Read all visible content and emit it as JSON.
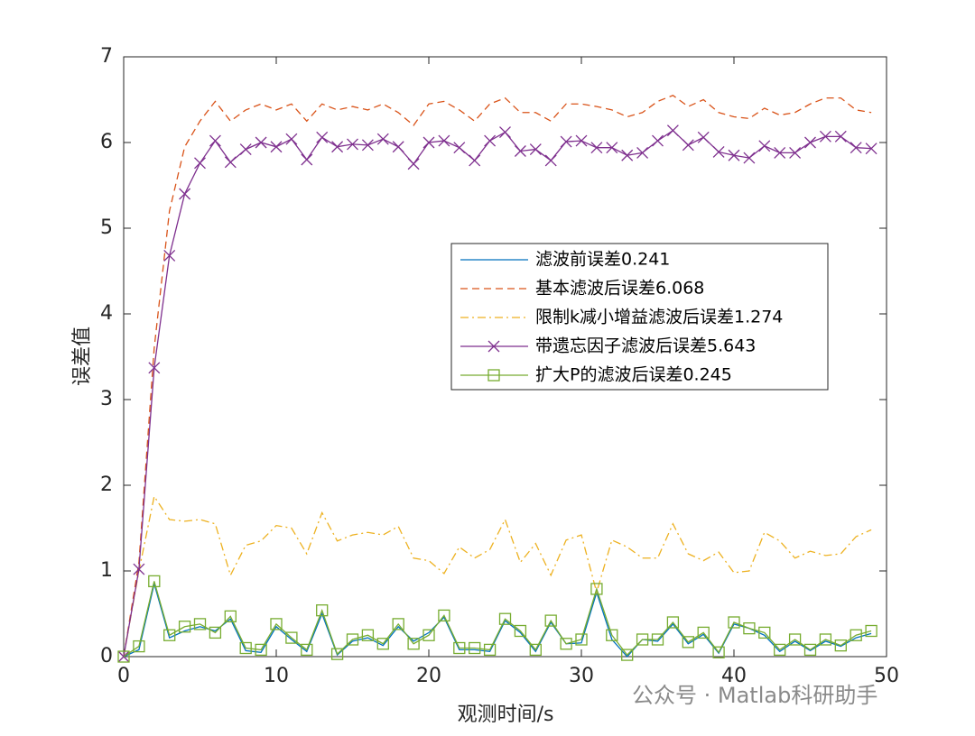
{
  "chart_data": {
    "type": "line",
    "xlabel": "观测时间/s",
    "ylabel": "误差值",
    "xlim": [
      0,
      50
    ],
    "xticks": [
      0,
      10,
      20,
      30,
      40,
      50
    ],
    "ylim": [
      0,
      7
    ],
    "yticks": [
      0,
      1,
      2,
      3,
      4,
      5,
      6,
      7
    ],
    "x": [
      0,
      1,
      2,
      3,
      4,
      5,
      6,
      7,
      8,
      9,
      10,
      11,
      12,
      13,
      14,
      15,
      16,
      17,
      18,
      19,
      20,
      21,
      22,
      23,
      24,
      25,
      26,
      27,
      28,
      29,
      30,
      31,
      32,
      33,
      34,
      35,
      36,
      37,
      38,
      39,
      40,
      41,
      42,
      43,
      44,
      45,
      46,
      47,
      48,
      49
    ],
    "series": [
      {
        "name": "滤波前误差0.241",
        "color": "#0072BD",
        "linestyle": "-",
        "marker": "none",
        "values": [
          0,
          0.08,
          0.85,
          0.22,
          0.3,
          0.35,
          0.3,
          0.44,
          0.07,
          0.05,
          0.35,
          0.2,
          0.06,
          0.5,
          0.02,
          0.18,
          0.22,
          0.13,
          0.35,
          0.18,
          0.28,
          0.46,
          0.08,
          0.08,
          0.06,
          0.42,
          0.28,
          0.06,
          0.4,
          0.15,
          0.16,
          0.75,
          0.2,
          0.0,
          0.2,
          0.18,
          0.38,
          0.15,
          0.26,
          0.04,
          0.38,
          0.33,
          0.25,
          0.06,
          0.18,
          0.07,
          0.18,
          0.12,
          0.22,
          0.27
        ]
      },
      {
        "name": "基本滤波后误差6.068",
        "color": "#D95319",
        "linestyle": "--",
        "marker": "none",
        "values": [
          0,
          1.1,
          3.6,
          5.2,
          5.95,
          6.25,
          6.48,
          6.25,
          6.38,
          6.45,
          6.38,
          6.45,
          6.25,
          6.45,
          6.38,
          6.42,
          6.38,
          6.45,
          6.35,
          6.2,
          6.45,
          6.48,
          6.38,
          6.25,
          6.45,
          6.52,
          6.35,
          6.35,
          6.25,
          6.45,
          6.45,
          6.42,
          6.38,
          6.3,
          6.35,
          6.48,
          6.55,
          6.42,
          6.5,
          6.35,
          6.3,
          6.28,
          6.4,
          6.32,
          6.35,
          6.45,
          6.52,
          6.52,
          6.38,
          6.35
        ]
      },
      {
        "name": "限制k减小增益滤波后误差1.274",
        "color": "#EDB120",
        "linestyle": "-.",
        "marker": "none",
        "values": [
          0,
          1.0,
          1.87,
          1.6,
          1.58,
          1.6,
          1.55,
          0.95,
          1.3,
          1.35,
          1.53,
          1.5,
          1.2,
          1.68,
          1.35,
          1.42,
          1.45,
          1.42,
          1.52,
          1.15,
          1.12,
          0.97,
          1.28,
          1.15,
          1.25,
          1.6,
          1.1,
          1.32,
          0.95,
          1.36,
          1.42,
          0.75,
          1.36,
          1.28,
          1.15,
          1.15,
          1.55,
          1.2,
          1.12,
          1.22,
          0.98,
          1.0,
          1.45,
          1.35,
          1.15,
          1.23,
          1.18,
          1.2,
          1.4,
          1.48
        ]
      },
      {
        "name": "带遗忘因子滤波后误差5.643",
        "color": "#7E2F8E",
        "linestyle": "-",
        "marker": "x",
        "values": [
          0,
          1.02,
          3.37,
          4.68,
          5.4,
          5.76,
          6.02,
          5.77,
          5.92,
          6.0,
          5.95,
          6.04,
          5.8,
          6.06,
          5.95,
          5.98,
          5.97,
          6.04,
          5.95,
          5.75,
          6.0,
          6.02,
          5.94,
          5.79,
          6.02,
          6.12,
          5.9,
          5.92,
          5.79,
          6.01,
          6.02,
          5.94,
          5.94,
          5.85,
          5.88,
          6.02,
          6.14,
          5.97,
          6.06,
          5.89,
          5.85,
          5.82,
          5.96,
          5.88,
          5.88,
          6.0,
          6.07,
          6.07,
          5.94,
          5.93
        ]
      },
      {
        "name": "扩大P的滤波后误差0.245",
        "color": "#77AC30",
        "linestyle": "-",
        "marker": "square",
        "values": [
          0,
          0.12,
          0.88,
          0.25,
          0.35,
          0.38,
          0.28,
          0.47,
          0.1,
          0.08,
          0.38,
          0.22,
          0.08,
          0.54,
          0.03,
          0.2,
          0.25,
          0.15,
          0.38,
          0.15,
          0.25,
          0.48,
          0.1,
          0.1,
          0.08,
          0.44,
          0.3,
          0.08,
          0.42,
          0.15,
          0.2,
          0.79,
          0.25,
          0.02,
          0.2,
          0.2,
          0.4,
          0.17,
          0.28,
          0.05,
          0.4,
          0.33,
          0.28,
          0.08,
          0.2,
          0.08,
          0.2,
          0.13,
          0.25,
          0.3
        ]
      }
    ],
    "legend": "right",
    "watermark": "公众号 · Matlab科研助手"
  }
}
